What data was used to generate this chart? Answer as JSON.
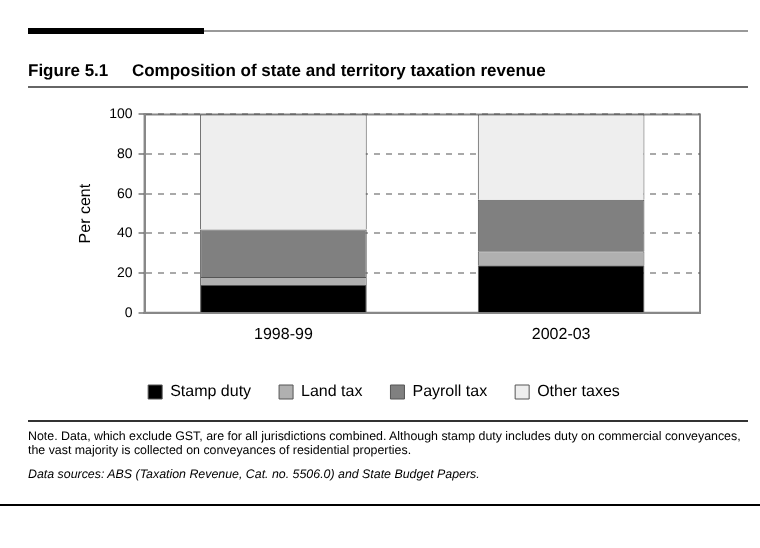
{
  "chart_data": {
    "type": "bar",
    "title": "Figure 5.1     Composition of state and territory taxation revenue",
    "ylabel": "Per cent",
    "categories": [
      "1998-99",
      "2002-03"
    ],
    "series": [
      {
        "name": "Stamp duty",
        "color": "#000000",
        "values": [
          14,
          24
        ]
      },
      {
        "name": "Land tax",
        "color": "#b0b0b0",
        "values": [
          4,
          7
        ]
      },
      {
        "name": "Payroll tax",
        "color": "#808080",
        "values": [
          24,
          26
        ]
      },
      {
        "name": "Other taxes",
        "color": "#eeeeee",
        "values": [
          58,
          43
        ]
      }
    ],
    "stacked": true,
    "ylim": [
      0,
      100
    ],
    "yticks": [
      0,
      20,
      40,
      60,
      80,
      100
    ],
    "grid": "y",
    "legend": "bottom",
    "annotations": [
      "Note. Data, which exclude GST, are for all jurisdictions combined. Although stamp duty includes duty on commercial conveyances, the vast majority is collected on conveyances of residential properties.",
      "Data sources: ABS (Taxation Revenue, Cat. no. 5506.0) and State Budget Papers."
    ]
  }
}
